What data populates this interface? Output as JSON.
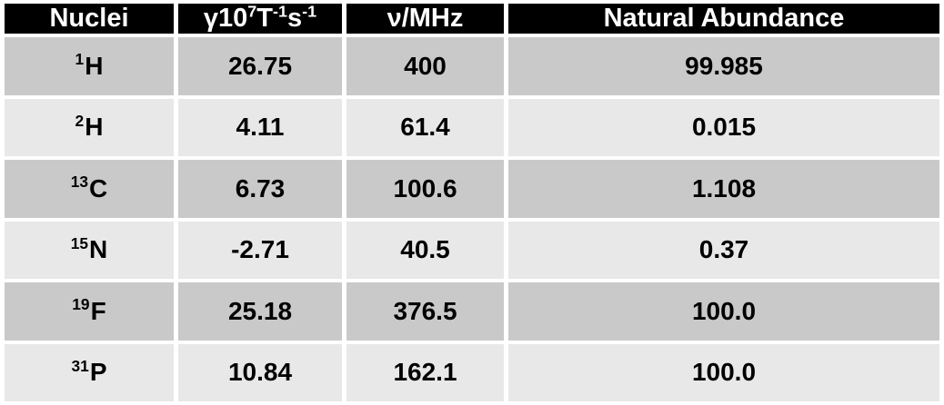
{
  "table": {
    "style": {
      "header_bg": "#000000",
      "header_text_color": "#ffffff",
      "row_band_dark": "#c9c9c9",
      "row_band_light": "#e8e8e8",
      "body_text_color": "#000000",
      "gridline_color": "#ffffff"
    },
    "columns": {
      "nuclei": {
        "label": "Nuclei"
      },
      "gamma": {
        "text": "γ10⁷T⁻¹s⁻¹",
        "base1": "γ10",
        "sup1": "7",
        "base2": "T",
        "sup2": "-1",
        "base3": "s",
        "sup3": "-1"
      },
      "freq": {
        "label": "ν/MHz"
      },
      "abundance": {
        "label": "Natural Abundance"
      }
    },
    "rows": [
      {
        "mass": "1",
        "symbol": "H",
        "gamma": "26.75",
        "freq": "400",
        "abundance": "99.985"
      },
      {
        "mass": "2",
        "symbol": "H",
        "gamma": "4.11",
        "freq": "61.4",
        "abundance": "0.015"
      },
      {
        "mass": "13",
        "symbol": "C",
        "gamma": "6.73",
        "freq": "100.6",
        "abundance": "1.108"
      },
      {
        "mass": "15",
        "symbol": "N",
        "gamma": "-2.71",
        "freq": "40.5",
        "abundance": "0.37"
      },
      {
        "mass": "19",
        "symbol": "F",
        "gamma": "25.18",
        "freq": "376.5",
        "abundance": "100.0"
      },
      {
        "mass": "31",
        "symbol": "P",
        "gamma": "10.84",
        "freq": "162.1",
        "abundance": "100.0"
      }
    ]
  },
  "chart_data": {
    "type": "table",
    "title": "",
    "columns": [
      "Nuclei",
      "γ10⁷T⁻¹s⁻¹",
      "ν/MHz",
      "Natural Abundance"
    ],
    "rows": [
      [
        "¹H",
        26.75,
        400,
        99.985
      ],
      [
        "²H",
        4.11,
        61.4,
        0.015
      ],
      [
        "¹³C",
        6.73,
        100.6,
        1.108
      ],
      [
        "¹⁵N",
        -2.71,
        40.5,
        0.37
      ],
      [
        "¹⁹F",
        25.18,
        376.5,
        100.0
      ],
      [
        "³¹P",
        10.84,
        162.1,
        100.0
      ]
    ]
  }
}
